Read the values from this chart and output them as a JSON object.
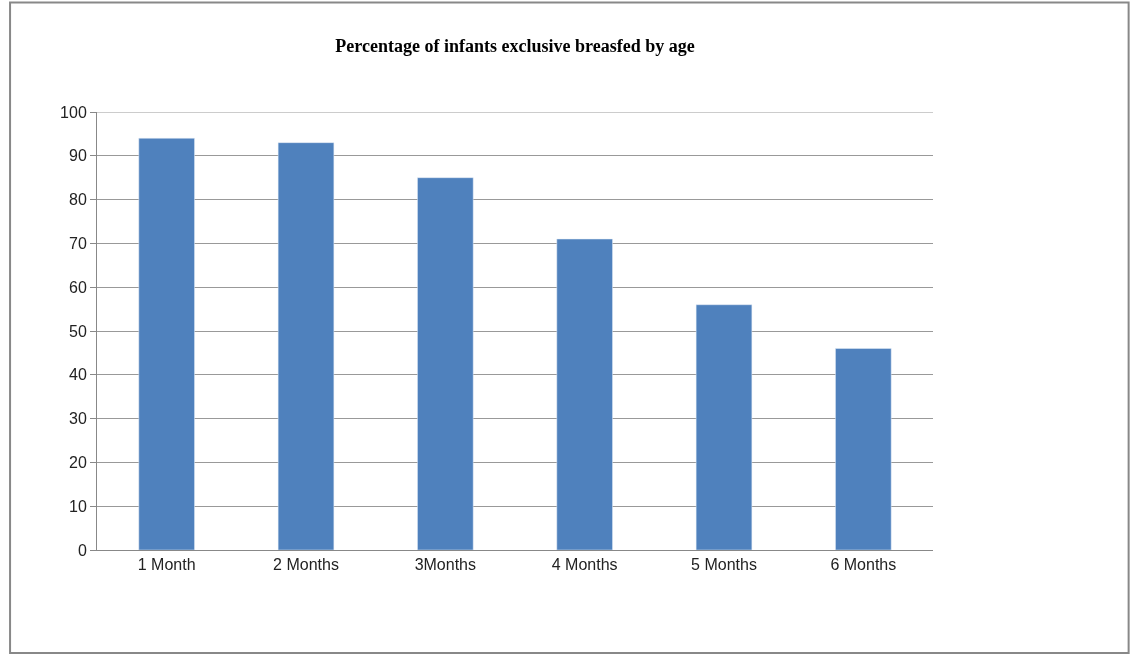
{
  "chart_data": {
    "type": "bar",
    "title": "Percentage of infants exclusive breasfed by age",
    "categories": [
      "1 Month",
      "2 Months",
      "3Months",
      "4 Months",
      "5 Months",
      "6 Months"
    ],
    "values": [
      94,
      93,
      85,
      71,
      56,
      46
    ],
    "color": "#4f81bd",
    "ylim": [
      0,
      100
    ],
    "yticks": [
      0,
      10,
      20,
      30,
      40,
      50,
      60,
      70,
      80,
      90,
      100
    ],
    "grid": "y"
  }
}
